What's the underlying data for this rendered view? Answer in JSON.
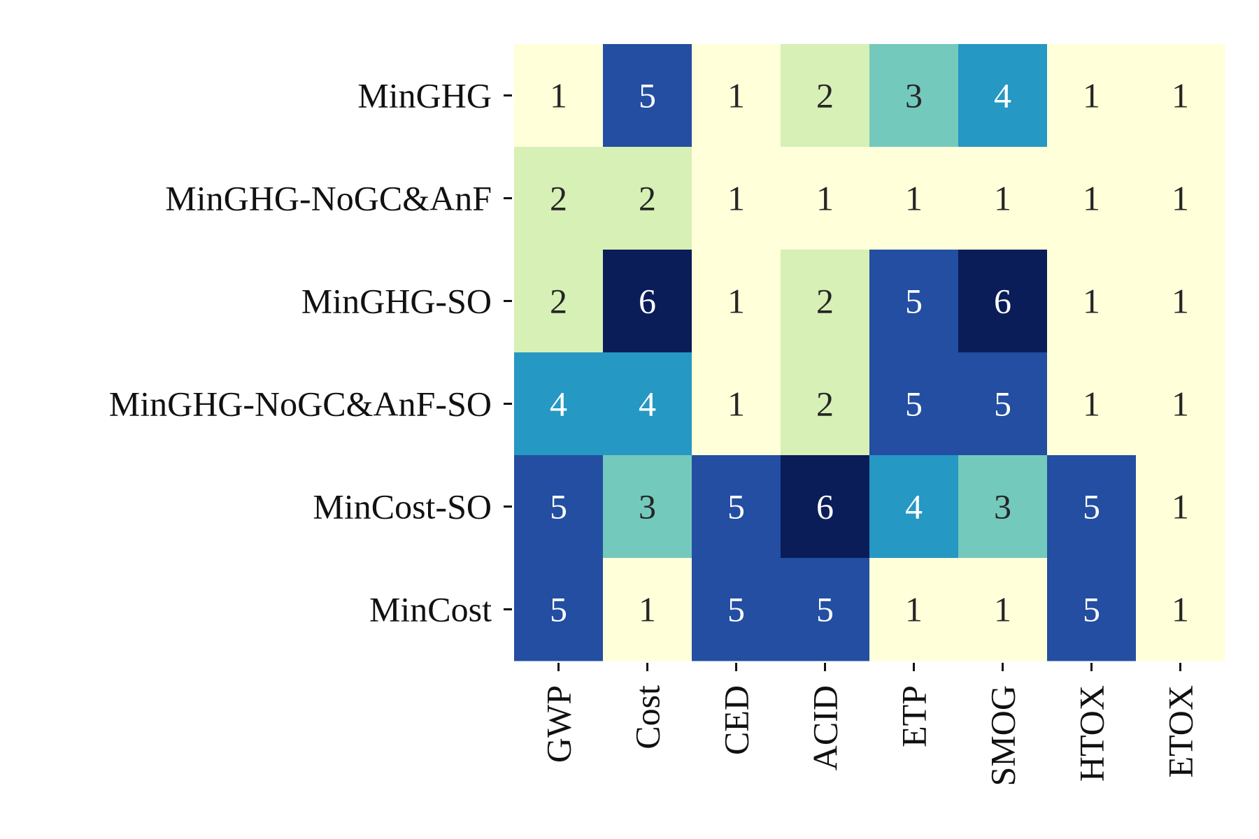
{
  "chart_data": {
    "type": "heatmap",
    "rows": [
      "MinGHG",
      "MinGHG-NoGC&AnF",
      "MinGHG-SO",
      "MinGHG-NoGC&AnF-SO",
      "MinCost-SO",
      "MinCost"
    ],
    "columns": [
      "GWP",
      "Cost",
      "CED",
      "ACID",
      "ETP",
      "SMOG",
      "HTOX",
      "ETOX"
    ],
    "values": [
      [
        1,
        5,
        1,
        2,
        3,
        4,
        1,
        1
      ],
      [
        2,
        2,
        1,
        1,
        1,
        1,
        1,
        1
      ],
      [
        2,
        6,
        1,
        2,
        5,
        6,
        1,
        1
      ],
      [
        4,
        4,
        1,
        2,
        5,
        5,
        1,
        1
      ],
      [
        5,
        3,
        5,
        6,
        4,
        3,
        5,
        1
      ],
      [
        5,
        1,
        5,
        5,
        1,
        1,
        5,
        1
      ]
    ],
    "colormap": {
      "1": "#FFFFDA",
      "2": "#D7F0B5",
      "3": "#74C9BD",
      "4": "#2598C3",
      "5": "#234EA1",
      "6": "#0A1D58"
    },
    "text_color_dark": "#262626",
    "text_color_light": "#ffffff",
    "colorbar": false,
    "grid": false,
    "legend": "none"
  }
}
